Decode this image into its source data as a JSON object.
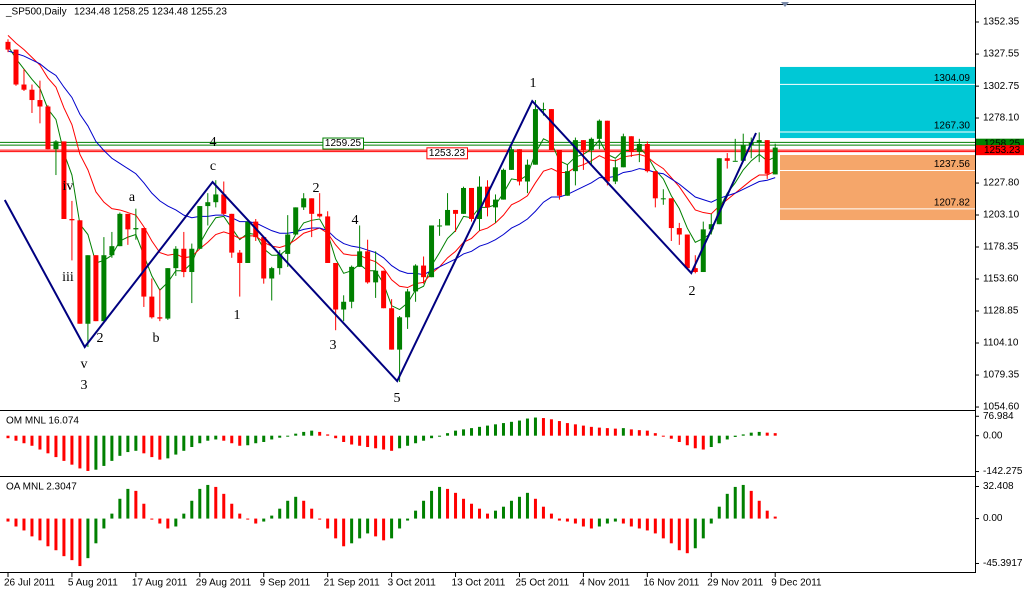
{
  "chart_data": [
    {
      "type": "candlestick",
      "title": "_SP500,Daily",
      "ohlc_text": "1234.48 1258.25 1234.48 1255.23",
      "categories": [
        "26 Jul 2011",
        null,
        null,
        null,
        null,
        null,
        null,
        null,
        "5 Aug 2011",
        null,
        null,
        null,
        null,
        null,
        null,
        null,
        "17 Aug 2011",
        null,
        null,
        null,
        null,
        null,
        null,
        null,
        "29 Aug 2011",
        null,
        null,
        null,
        null,
        null,
        null,
        null,
        "9 Sep 2011",
        null,
        null,
        null,
        null,
        null,
        null,
        null,
        "21 Sep 2011",
        null,
        null,
        null,
        null,
        null,
        null,
        null,
        "3 Oct 2011",
        null,
        null,
        null,
        null,
        null,
        null,
        null,
        "13 Oct 2011",
        null,
        null,
        null,
        null,
        null,
        null,
        null,
        "25 Oct 2011",
        null,
        null,
        null,
        null,
        null,
        null,
        null,
        "4 Nov 2011",
        null,
        null,
        null,
        null,
        null,
        null,
        null,
        "16 Nov 2011",
        null,
        null,
        null,
        null,
        null,
        null,
        null,
        "29 Nov 2011",
        null,
        null,
        null,
        null,
        null,
        null,
        null,
        "9 Dec 2011"
      ],
      "open": [
        1337,
        1331,
        1304,
        1300,
        1292,
        1287,
        1254,
        1260,
        1200,
        1199,
        1119,
        1172,
        1121,
        1172,
        1179,
        1204,
        1192,
        1193,
        1140,
        1124,
        1123,
        1162,
        1177,
        1159,
        1177,
        1210,
        1213,
        1219,
        1204,
        1174,
        1166,
        1198,
        1186,
        1154,
        1162,
        1173,
        1188,
        1209,
        1216,
        1204,
        1202,
        1166,
        1130,
        1136,
        1163,
        1175,
        1151,
        1160,
        1131,
        1099,
        1124,
        1144,
        1164,
        1155,
        1195,
        1195,
        1207,
        1204,
        1224,
        1200,
        1225,
        1209,
        1215,
        1238,
        1254,
        1229,
        1242,
        1285,
        1285,
        1253,
        1218,
        1237,
        1261,
        1253,
        1262,
        1276,
        1229,
        1240,
        1264,
        1252,
        1258,
        1237,
        1216,
        1216,
        1193,
        1188,
        1162,
        1159,
        1192,
        1196,
        1247,
        1245,
        1245,
        1257,
        1259,
        1261,
        1234.48
      ],
      "high": [
        1339,
        1331,
        1316,
        1304,
        1307,
        1288,
        1261,
        1260,
        1214,
        1199,
        1172,
        1172,
        1186,
        1190,
        1205,
        1204,
        1208,
        1193,
        1154,
        1146,
        1162,
        1179,
        1190,
        1181,
        1210,
        1220,
        1230,
        1229,
        1204,
        1176,
        1198,
        1200,
        1186,
        1163,
        1176,
        1203,
        1209,
        1220,
        1216,
        1220,
        1206,
        1166,
        1141,
        1164,
        1195,
        1184,
        1175,
        1160,
        1138,
        1125,
        1146,
        1165,
        1171,
        1195,
        1200,
        1220,
        1207,
        1225,
        1224,
        1233,
        1230,
        1219,
        1239,
        1256,
        1254,
        1246,
        1292,
        1290,
        1285,
        1253,
        1242,
        1263,
        1261,
        1263,
        1277,
        1276,
        1246,
        1266,
        1264,
        1262,
        1260,
        1237,
        1223,
        1216,
        1197,
        1188,
        1172,
        1198,
        1204,
        1247,
        1251,
        1262,
        1266,
        1263,
        1267,
        1261,
        1258.25
      ],
      "low": [
        1329,
        1303,
        1299,
        1282,
        1274,
        1254,
        1234,
        1200,
        1168,
        1119,
        1101,
        1121,
        1121,
        1170,
        1179,
        1180,
        1184,
        1132,
        1123,
        1121,
        1122,
        1156,
        1155,
        1135,
        1177,
        1195,
        1209,
        1203,
        1170,
        1140,
        1166,
        1183,
        1150,
        1137,
        1157,
        1163,
        1188,
        1207,
        1186,
        1201,
        1166,
        1114,
        1121,
        1131,
        1163,
        1150,
        1139,
        1131,
        1099,
        1074,
        1115,
        1136,
        1150,
        1155,
        1187,
        1195,
        1190,
        1204,
        1198,
        1191,
        1202,
        1197,
        1215,
        1238,
        1226,
        1220,
        1242,
        1280,
        1253,
        1215,
        1218,
        1226,
        1238,
        1241,
        1254,
        1226,
        1227,
        1240,
        1248,
        1244,
        1236,
        1209,
        1211,
        1183,
        1180,
        1161,
        1158,
        1159,
        1188,
        1196,
        1239,
        1245,
        1245,
        1247,
        1244,
        1231,
        1234.48
      ],
      "close": [
        1331,
        1304,
        1300,
        1292,
        1287,
        1254,
        1260,
        1200,
        1199,
        1119,
        1172,
        1121,
        1172,
        1179,
        1204,
        1192,
        1193,
        1140,
        1124,
        1123,
        1162,
        1177,
        1159,
        1177,
        1210,
        1213,
        1219,
        1204,
        1174,
        1166,
        1198,
        1186,
        1154,
        1162,
        1173,
        1188,
        1209,
        1216,
        1204,
        1202,
        1166,
        1130,
        1136,
        1163,
        1175,
        1151,
        1160,
        1131,
        1099,
        1124,
        1144,
        1164,
        1155,
        1195,
        1195,
        1207,
        1204,
        1224,
        1200,
        1225,
        1209,
        1215,
        1238,
        1254,
        1229,
        1242,
        1285,
        1285,
        1253,
        1218,
        1237,
        1261,
        1253,
        1262,
        1276,
        1229,
        1240,
        1264,
        1252,
        1258,
        1237,
        1216,
        1216,
        1193,
        1188,
        1162,
        1159,
        1192,
        1196,
        1247,
        1245,
        1245,
        1257,
        1259,
        1261,
        1235,
        1255.23
      ],
      "up_color": "#008000",
      "down_color": "#ff0000",
      "xlim": [
        -1,
        121
      ],
      "ylim": [
        1052.3,
        1365.5
      ],
      "yticks": [
        1352.35,
        1327.55,
        1302.75,
        {
          "value": 1278.1,
          "label": "1278.10"
        },
        {
          "value": 1227.8,
          "label": "1227.80"
        },
        {
          "value": 1203.1,
          "label": "1203.10"
        },
        1178.35,
        {
          "value": 1153.6,
          "label": "1153.60"
        },
        1128.85,
        {
          "value": 1104.1,
          "label": "1104.10"
        },
        1079.35,
        {
          "value": 1054.6,
          "label": "1054.60"
        }
      ],
      "moving_averages": [
        {
          "color": "#008000",
          "values": [
            1334,
            1324,
            1316,
            1308,
            1301,
            1285,
            1277,
            1251,
            1234,
            1196,
            1188,
            1166,
            1168,
            1172,
            1183,
            1186,
            1188,
            1172,
            1156,
            1145,
            1151,
            1160,
            1160,
            1166,
            1181,
            1192,
            1201,
            1202,
            1193,
            1184,
            1189,
            1188,
            1177,
            1172,
            1172,
            1177,
            1188,
            1197,
            1199,
            1200,
            1189,
            1169,
            1158,
            1160,
            1165,
            1160,
            1160,
            1150,
            1133,
            1130,
            1135,
            1145,
            1148,
            1164,
            1174,
            1185,
            1191,
            1202,
            1201,
            1209,
            1209,
            1211,
            1220,
            1231,
            1230,
            1234,
            1251,
            1262,
            1259,
            1245,
            1242,
            1248,
            1250,
            1254,
            1261,
            1250,
            1247,
            1253,
            1253,
            1255,
            1249,
            1238,
            1231,
            1218,
            1208,
            1193,
            1182,
            1185,
            1189,
            1208,
            1220,
            1228,
            1238,
            1245,
            1250,
            1245,
            1248
          ]
        },
        {
          "color": "#ff0000",
          "values": [
            1342,
            1336,
            1331,
            1325,
            1319,
            1309,
            1302,
            1286,
            1273,
            1250,
            1238,
            1221,
            1213,
            1208,
            1207,
            1205,
            1203,
            1194,
            1183,
            1174,
            1172,
            1173,
            1170,
            1171,
            1177,
            1182,
            1188,
            1190,
            1188,
            1185,
            1187,
            1187,
            1182,
            1179,
            1178,
            1180,
            1184,
            1189,
            1191,
            1193,
            1189,
            1180,
            1173,
            1172,
            1172,
            1169,
            1167,
            1162,
            1153,
            1148,
            1147,
            1150,
            1151,
            1158,
            1163,
            1170,
            1175,
            1182,
            1185,
            1191,
            1193,
            1197,
            1203,
            1211,
            1214,
            1218,
            1228,
            1237,
            1239,
            1236,
            1236,
            1240,
            1242,
            1245,
            1249,
            1246,
            1245,
            1248,
            1249,
            1250,
            1248,
            1243,
            1239,
            1232,
            1225,
            1216,
            1207,
            1205,
            1204,
            1210,
            1215,
            1220,
            1225,
            1230,
            1234,
            1234,
            1237
          ]
        },
        {
          "color": "#0000cc",
          "values": [
            1330,
            1328,
            1326,
            1323,
            1320,
            1315,
            1311,
            1302,
            1294,
            1281,
            1272,
            1260,
            1253,
            1247,
            1243,
            1239,
            1235,
            1228,
            1220,
            1214,
            1210,
            1207,
            1203,
            1201,
            1202,
            1202,
            1203,
            1203,
            1201,
            1198,
            1198,
            1197,
            1194,
            1191,
            1189,
            1189,
            1190,
            1192,
            1193,
            1193,
            1191,
            1185,
            1181,
            1179,
            1178,
            1176,
            1174,
            1170,
            1164,
            1160,
            1158,
            1158,
            1157,
            1160,
            1163,
            1166,
            1169,
            1173,
            1175,
            1179,
            1181,
            1184,
            1188,
            1193,
            1196,
            1200,
            1206,
            1213,
            1217,
            1217,
            1219,
            1222,
            1225,
            1228,
            1232,
            1232,
            1233,
            1236,
            1237,
            1239,
            1238,
            1236,
            1235,
            1231,
            1227,
            1222,
            1217,
            1215,
            1213,
            1216,
            1218,
            1220,
            1223,
            1226,
            1229,
            1230,
            1232
          ]
        }
      ],
      "wave": {
        "color": "#000080",
        "x": [
          -0.4,
          9.6,
          25.6,
          48.7,
          65.6,
          85.5,
          93.6
        ],
        "y": [
          1214.7,
          1101,
          1228.6,
          1074.7,
          1291.2,
          1158.2,
          1266.5
        ]
      },
      "levels": [
        {
          "value": 1259.25,
          "label": "1259.25",
          "color": "#008000"
        },
        {
          "value": 1253.23,
          "label": "1253.23",
          "color": "#ff0000"
        }
      ],
      "price_markers": [
        {
          "value": 1258.25,
          "label": "1258.25",
          "color": "#008000"
        },
        {
          "value": 1253.23,
          "label": "1253.23",
          "color": "#ff0000"
        }
      ],
      "zones": [
        {
          "top": 1317.6,
          "bottom": 1262.6,
          "color": "#00c8d6",
          "lines": [
            {
              "value": 1304.09,
              "label": "1304.09"
            },
            {
              "value": 1267.3,
              "label": "1267.30"
            }
          ]
        },
        {
          "top": 1249.5,
          "bottom": 1199.2,
          "color": "#f5a66a",
          "lines": [
            {
              "value": 1237.56,
              "label": "1237.56"
            },
            {
              "value": 1207.82,
              "label": "1207.82"
            }
          ]
        }
      ],
      "annotations": [
        {
          "text": "1",
          "color": "#000080"
        },
        {
          "text": "2",
          "color": "#000080"
        },
        {
          "text": "iv",
          "color": "#000000"
        },
        {
          "text": "iii",
          "color": "#000000"
        },
        {
          "text": "v",
          "color": "#000000"
        },
        {
          "text": "3",
          "color": "#ff0000"
        },
        {
          "text": "2",
          "color": "#ff0000"
        },
        {
          "text": "a",
          "color": "#ff0000"
        },
        {
          "text": "b",
          "color": "#ff0000"
        },
        {
          "text": "c",
          "color": "#ff0000"
        },
        {
          "text": "4",
          "color": "#ff0000"
        },
        {
          "text": "1",
          "color": "#ff0000"
        },
        {
          "text": "2",
          "color": "#ff0000"
        },
        {
          "text": "3",
          "color": "#ff0000"
        },
        {
          "text": "4",
          "color": "#ff0000"
        },
        {
          "text": "5",
          "color": "#ff0000"
        }
      ]
    },
    {
      "type": "bar",
      "title": "OM MNL 16.074",
      "up_color": "#008000",
      "down_color": "#ff0000",
      "ylim": [
        -160,
        90
      ],
      "yticks": [
        76.984,
        {
          "value": 0,
          "label": "0.00"
        },
        -142.275
      ],
      "values": [
        -10,
        -20,
        -30,
        -40,
        -55,
        -70,
        -85,
        -100,
        -115,
        -130,
        -140,
        -135,
        -120,
        -100,
        -80,
        -65,
        -60,
        -70,
        -85,
        -95,
        -90,
        -75,
        -60,
        -45,
        -30,
        -20,
        -15,
        -20,
        -30,
        -40,
        -38,
        -30,
        -25,
        -15,
        -8,
        0,
        8,
        15,
        20,
        15,
        5,
        -10,
        -25,
        -35,
        -40,
        -45,
        -50,
        -55,
        -60,
        -50,
        -40,
        -30,
        -20,
        -10,
        0,
        10,
        20,
        25,
        30,
        35,
        40,
        45,
        50,
        55,
        60,
        68,
        72,
        70,
        65,
        58,
        50,
        45,
        40,
        35,
        32,
        30,
        28,
        30,
        25,
        22,
        20,
        10,
        0,
        -12,
        -25,
        -38,
        -50,
        -55,
        -45,
        -30,
        -15,
        -5,
        5,
        12,
        15,
        12,
        10
      ]
    },
    {
      "type": "bar",
      "title": "OA MNL 2.3047",
      "up_color": "#008000",
      "down_color": "#ff0000",
      "ylim": [
        -54,
        40
      ],
      "yticks": [
        32.408,
        {
          "value": 0,
          "label": "0.00"
        },
        -45.3917
      ],
      "values": [
        -3,
        -8,
        -12,
        -18,
        -22,
        -28,
        -32,
        -38,
        -42,
        -48,
        -40,
        -25,
        -10,
        5,
        20,
        30,
        28,
        15,
        0,
        -5,
        -10,
        -8,
        5,
        18,
        30,
        34,
        32,
        25,
        15,
        5,
        0,
        -5,
        -3,
        3,
        10,
        18,
        22,
        18,
        10,
        0,
        -10,
        -20,
        -28,
        -25,
        -20,
        -15,
        -18,
        -22,
        -20,
        -10,
        -2,
        8,
        18,
        28,
        32,
        30,
        26,
        20,
        15,
        10,
        5,
        8,
        12,
        18,
        22,
        26,
        20,
        12,
        5,
        -2,
        -3,
        -5,
        -8,
        -10,
        -8,
        -5,
        -3,
        -5,
        -8,
        -10,
        -12,
        -15,
        -20,
        -25,
        -32,
        -35,
        -30,
        -20,
        -5,
        12,
        25,
        32,
        34,
        28,
        18,
        8,
        2
      ]
    }
  ]
}
